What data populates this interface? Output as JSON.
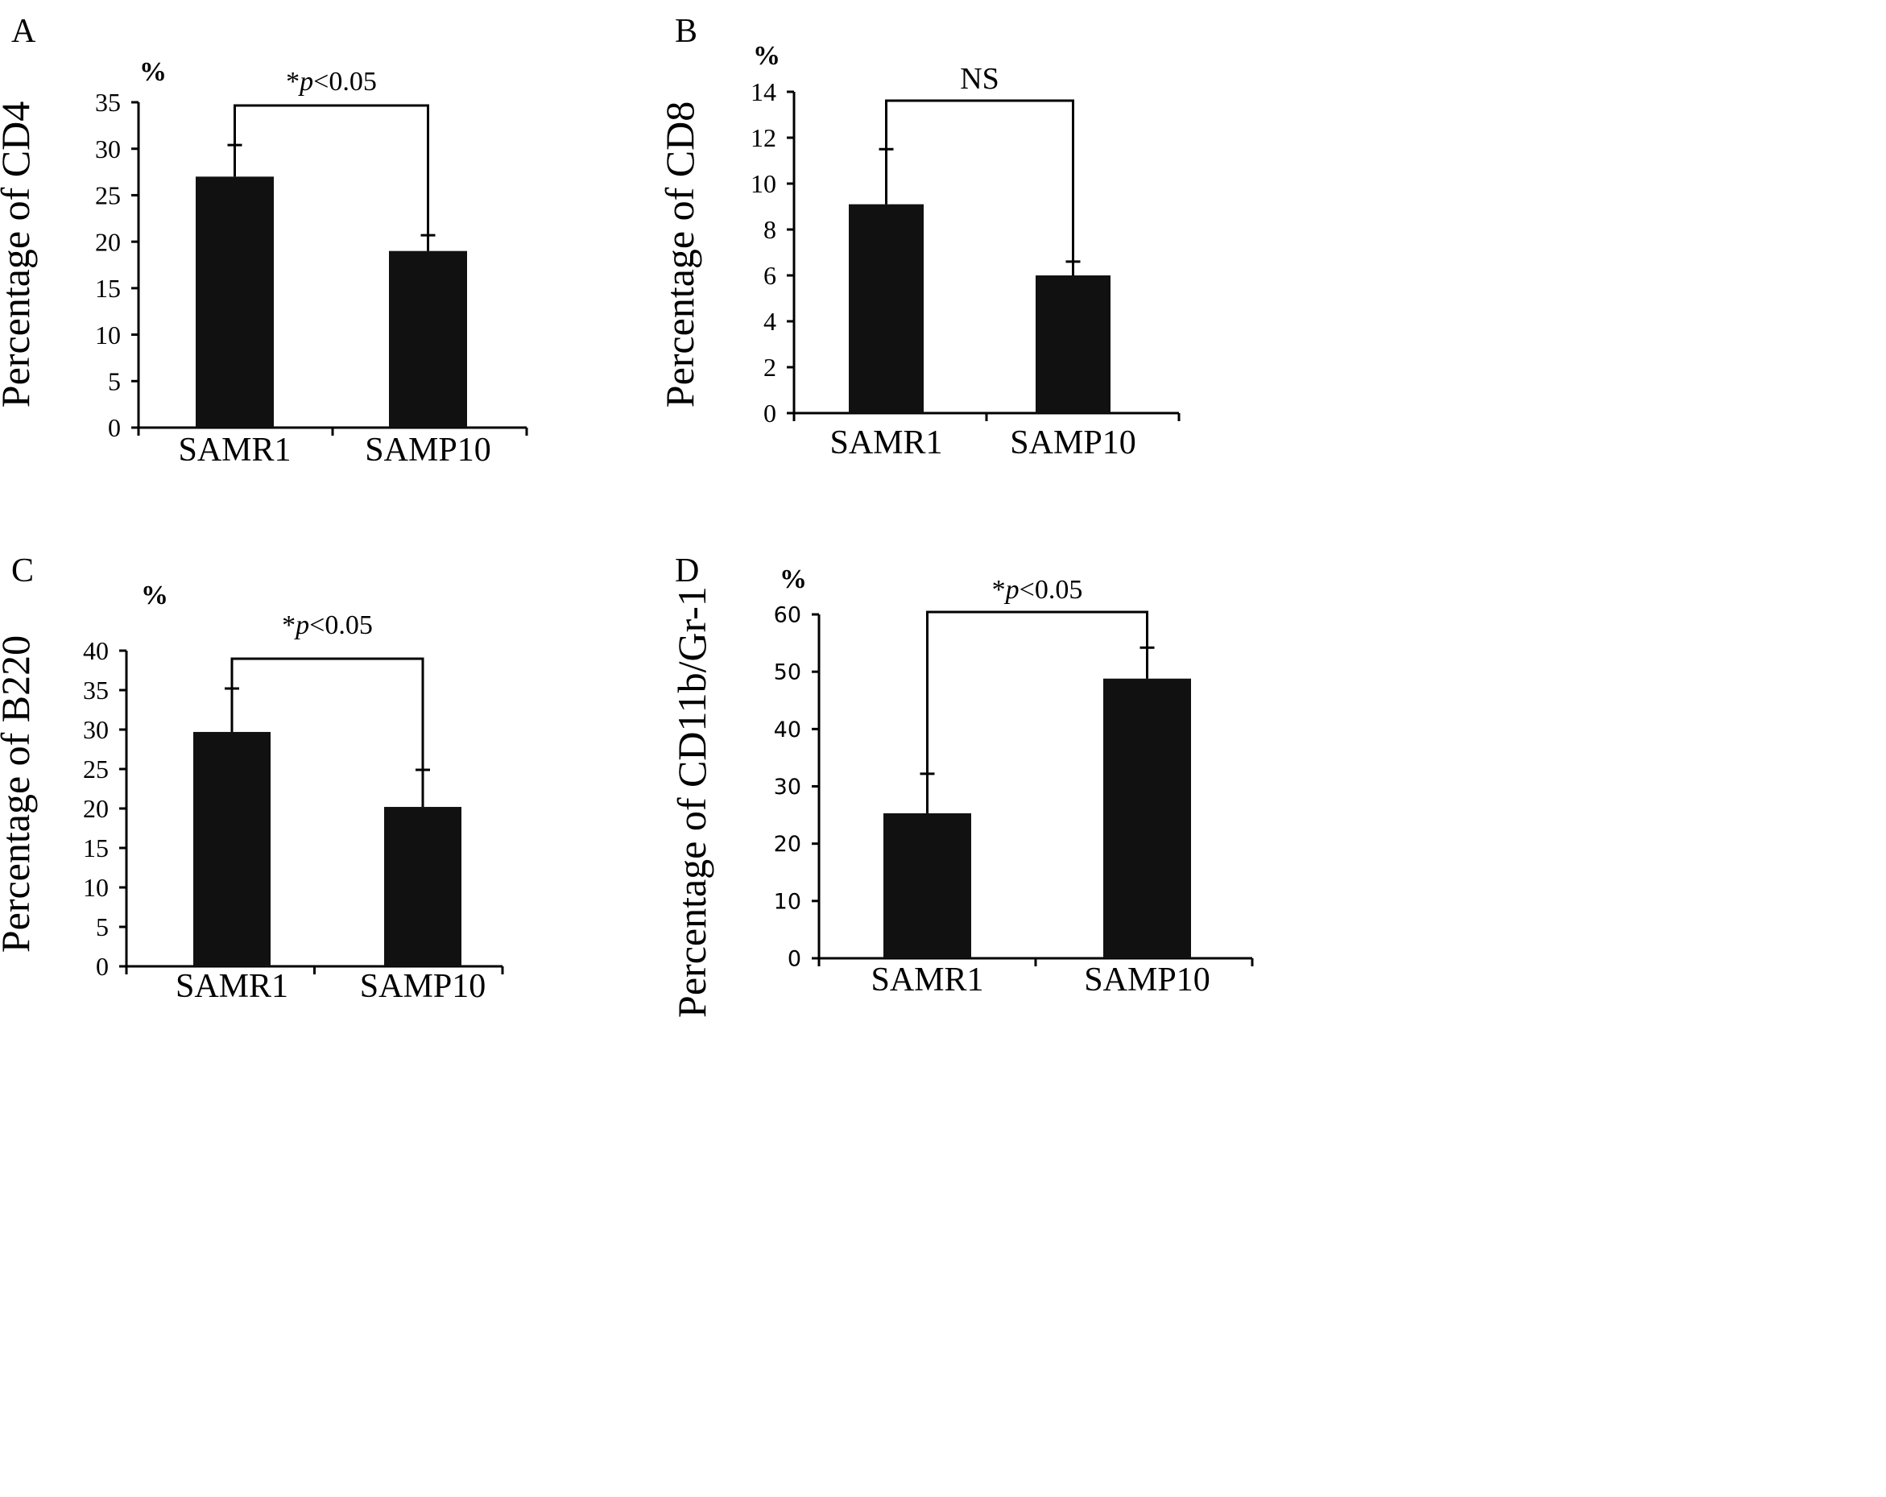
{
  "chart_data": [
    {
      "panel": "A",
      "type": "bar",
      "categories": [
        "SAMR1",
        "SAMP10"
      ],
      "values": [
        27,
        19
      ],
      "errors": [
        3.4,
        1.7
      ],
      "ylabel": "Percentage of CD4",
      "unit": "%",
      "ylim": [
        0,
        35
      ],
      "yticks": [
        0,
        5,
        10,
        15,
        20,
        25,
        30,
        35
      ],
      "annotation": {
        "star": "*",
        "p": "p",
        "rest": "<0.05",
        "text": "*p<0.05"
      }
    },
    {
      "panel": "B",
      "type": "bar",
      "categories": [
        "SAMR1",
        "SAMP10"
      ],
      "values": [
        9.1,
        6.0
      ],
      "errors": [
        2.4,
        0.6
      ],
      "ylabel": "Percentage of CD8",
      "unit": "%",
      "ylim": [
        0,
        14
      ],
      "yticks": [
        0,
        2,
        4,
        6,
        8,
        10,
        12,
        14
      ],
      "annotation": {
        "text": "NS"
      }
    },
    {
      "panel": "C",
      "type": "bar",
      "categories": [
        "SAMR1",
        "SAMP10"
      ],
      "values": [
        29.7,
        20.2
      ],
      "errors": [
        5.5,
        4.7
      ],
      "ylabel": "Percentage of  B220",
      "unit": "%",
      "ylim": [
        0,
        40
      ],
      "yticks": [
        0,
        5,
        10,
        15,
        20,
        25,
        30,
        35,
        40
      ],
      "annotation": {
        "star": "*",
        "p": "p",
        "rest": "<0.05",
        "text": "*p<0.05"
      }
    },
    {
      "panel": "D",
      "type": "bar",
      "categories": [
        "SAMR1",
        "SAMP10"
      ],
      "values": [
        25.3,
        48.8
      ],
      "errors": [
        6.9,
        5.4
      ],
      "ylabel": "Percentage of  CD11b/Gr-1",
      "unit": "%",
      "ylim": [
        0,
        60
      ],
      "yticks": [
        0,
        10,
        20,
        30,
        40,
        50,
        60
      ],
      "annotation": {
        "star": "*",
        "p": "p",
        "rest": "<0.05",
        "text": "*p<0.05"
      }
    }
  ]
}
